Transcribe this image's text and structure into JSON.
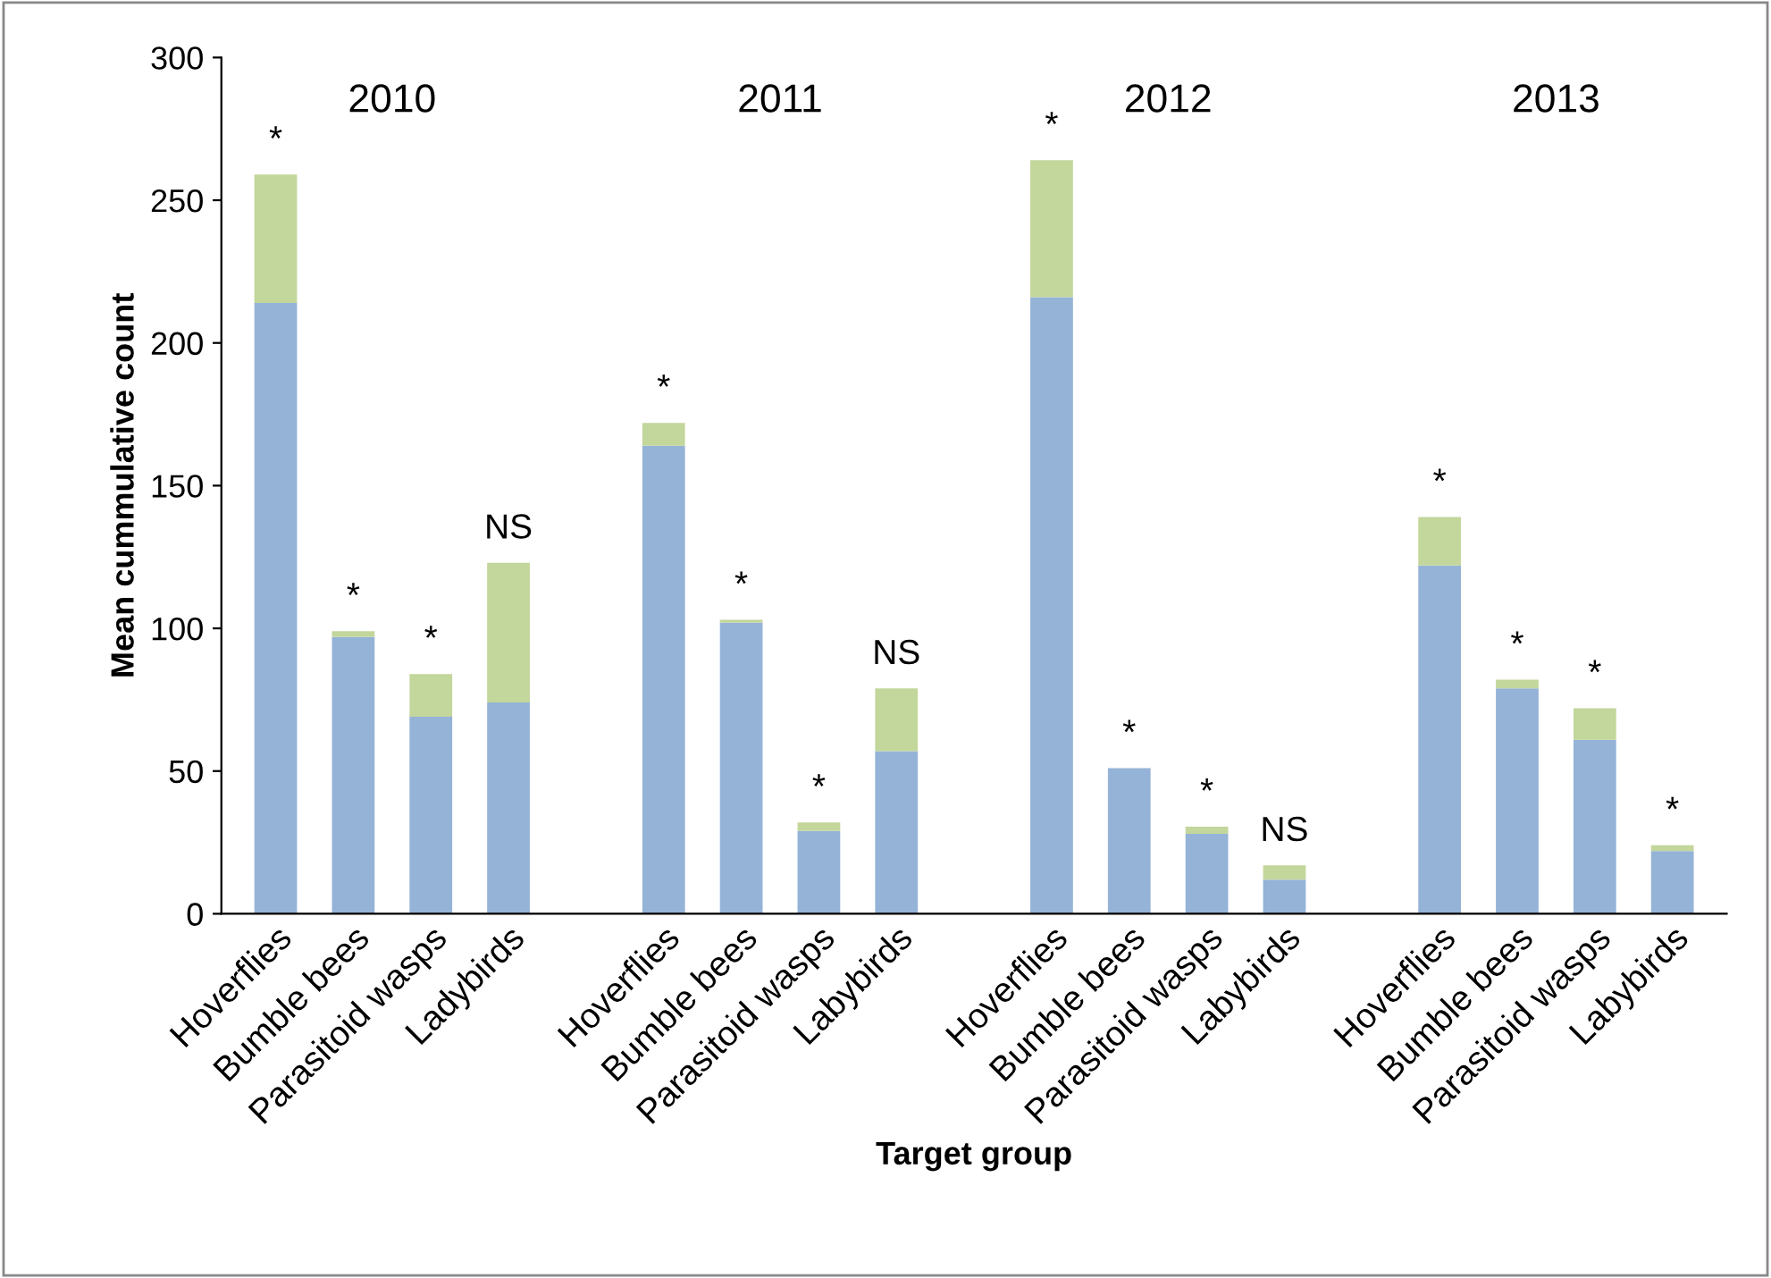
{
  "chart_data": {
    "type": "bar",
    "stacked": true,
    "xlabel": "Target group",
    "ylabel": "Mean cummulative count",
    "categories": [
      "Hoverflies",
      "Bumble bees",
      "Parasitoid wasps",
      "Ladybirds",
      null,
      "Hoverflies",
      "Bumble bees",
      "Parasitoid wasps",
      "Labybirds",
      null,
      "Hoverflies",
      "Bumble bees",
      "Parasitoid wasps",
      "Labybirds",
      null,
      "Hoverflies",
      "Bumble bees",
      "Parasitoid wasps",
      "Labybirds"
    ],
    "series": [
      {
        "color": "#95b3d7",
        "values": [
          214,
          97,
          69,
          74,
          null,
          164,
          102,
          29,
          57,
          null,
          216,
          51,
          28,
          12,
          null,
          122,
          79,
          61,
          22
        ]
      },
      {
        "color": "#c3d69b",
        "values": [
          45,
          2,
          15,
          49,
          null,
          8,
          1,
          3,
          22,
          null,
          48,
          0,
          2.5,
          5,
          null,
          17,
          3,
          11,
          2
        ],
        "value_labels": [
          "*",
          "*",
          "*",
          "NS",
          null,
          "*",
          "*",
          "*",
          "NS",
          null,
          "*",
          "*",
          "*",
          "NS",
          null,
          "*",
          "*",
          "*",
          "*"
        ]
      }
    ],
    "ylim": [
      0,
      300
    ],
    "yticks": [
      0,
      50,
      100,
      150,
      200,
      250,
      300
    ],
    "grid": false,
    "legend": false,
    "annotations": [
      "2010",
      "2011",
      "2012",
      "2013"
    ]
  }
}
